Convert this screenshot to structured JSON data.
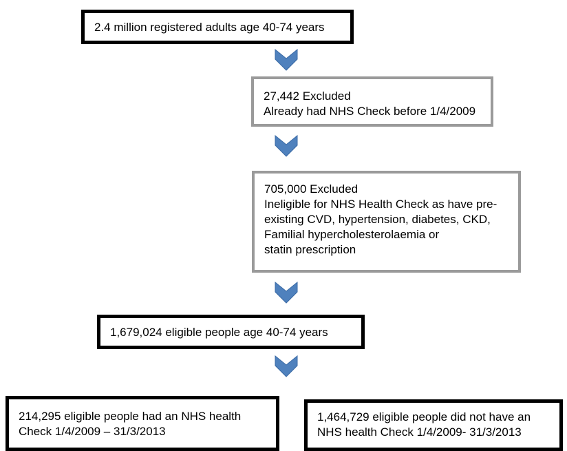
{
  "boxes": {
    "start": {
      "lines": [
        "2.4 million registered adults age 40-74 years"
      ]
    },
    "excluded1": {
      "lines": [
        "27,442 Excluded",
        "Already had NHS Check before 1/4/2009"
      ]
    },
    "excluded2": {
      "lines": [
        "705,000 Excluded",
        "Ineligible for NHS Health Check as have pre-",
        "existing CVD, hypertension, diabetes, CKD,",
        "Familial hypercholesterolaemia or",
        "statin prescription"
      ]
    },
    "eligible": {
      "lines": [
        "1,679,024 eligible people age 40-74 years"
      ]
    },
    "had_check": {
      "lines": [
        "214,295 eligible people had an NHS health",
        "Check 1/4/2009 – 31/3/2013"
      ]
    },
    "no_check": {
      "lines": [
        "1,464,729 eligible people did not have an",
        "NHS health Check 1/4/2009- 31/3/2013"
      ]
    }
  },
  "colors": {
    "arrow": "#4f81bd",
    "arrow_stroke": "#3a6aa5",
    "black_border": "#000000",
    "gray_border": "#9a9a9a"
  }
}
